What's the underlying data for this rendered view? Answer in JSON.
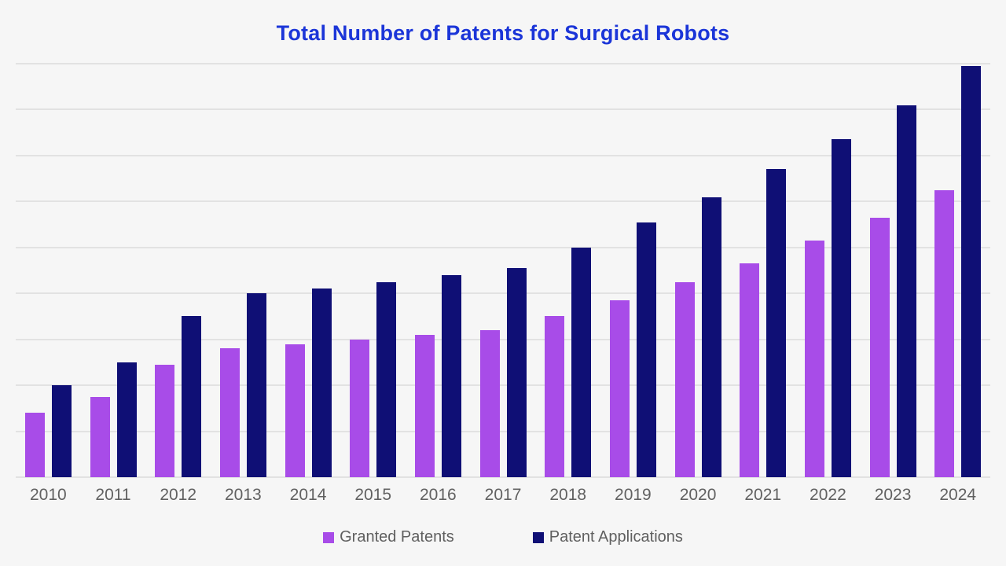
{
  "chart_data": {
    "type": "bar",
    "title": "Total Number of Patents for Surgical Robots",
    "categories": [
      "2010",
      "2011",
      "2012",
      "2013",
      "2014",
      "2015",
      "2016",
      "2017",
      "2018",
      "2019",
      "2020",
      "2021",
      "2022",
      "2023",
      "2024"
    ],
    "series": [
      {
        "name": "Granted Patents",
        "color": "#a84ce8",
        "values": [
          140,
          175,
          245,
          280,
          290,
          300,
          310,
          320,
          350,
          385,
          425,
          465,
          515,
          565,
          625
        ]
      },
      {
        "name": "Patent Applications",
        "color": "#0f0f75",
        "values": [
          200,
          250,
          350,
          400,
          410,
          425,
          440,
          455,
          500,
          555,
          610,
          670,
          735,
          810,
          895
        ]
      }
    ],
    "xlabel": "",
    "ylabel": "",
    "ylim": [
      0,
      900
    ],
    "gridline_step": 100,
    "grid": "horizontal",
    "y_axis_labels_visible": false,
    "legend_position": "bottom",
    "title_color": "#1b35d8",
    "background_color": "#f6f6f6",
    "gridline_color": "#e2e2e2",
    "axis_label_color": "#616161",
    "legend_text_color": "#5f5f5f"
  }
}
